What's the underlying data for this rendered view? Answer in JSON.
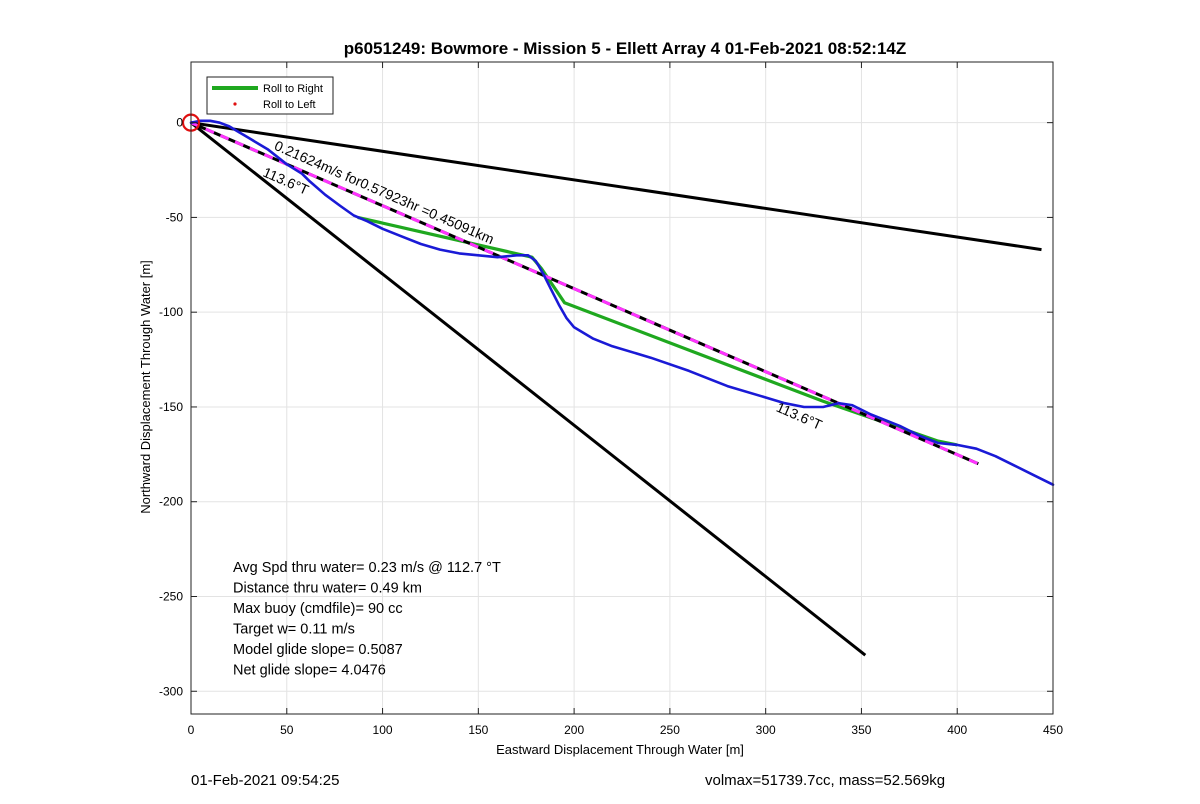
{
  "chart_data": {
    "type": "line",
    "title": "p6051249: Bowmore - Mission 5 - Ellett Array 4 01-Feb-2021 08:52:14Z",
    "xlabel": "Eastward Displacement Through Water [m]",
    "ylabel": "Northward Displacement Through Water [m]",
    "xlim": [
      0,
      450
    ],
    "ylim": [
      -312,
      32
    ],
    "xticks": [
      0,
      50,
      100,
      150,
      200,
      250,
      300,
      350,
      400,
      450
    ],
    "yticks": [
      0,
      -50,
      -100,
      -150,
      -200,
      -250,
      -300
    ],
    "grid": true,
    "legend": {
      "placement": "top-left",
      "entries": [
        "Roll to Right",
        "Roll to Left"
      ]
    },
    "colors": {
      "track": "#1a1ad6",
      "roll_right": "#1fa81f",
      "roll_left": "#e01010",
      "bounds": "#000000",
      "avg_line_dash": "#ff33ff",
      "start_marker": "#e01010"
    },
    "series": [
      {
        "name": "Roll to Right",
        "style": "solid",
        "segments": [
          [
            [
              87,
              -50
            ],
            [
              178,
              -71
            ],
            [
              183,
              -77
            ],
            [
              195,
              -95
            ],
            [
              330,
              -147
            ],
            [
              390,
              -168
            ],
            [
              400,
              -170
            ]
          ]
        ]
      },
      {
        "name": "Roll to Left",
        "style": "dots",
        "segments": []
      }
    ],
    "track": {
      "style": "solid",
      "points": [
        [
          0,
          0
        ],
        [
          5,
          1
        ],
        [
          10,
          1
        ],
        [
          15,
          0
        ],
        [
          20,
          -2
        ],
        [
          25,
          -5
        ],
        [
          30,
          -8
        ],
        [
          40,
          -14
        ],
        [
          50,
          -22
        ],
        [
          58,
          -27
        ],
        [
          62,
          -31
        ],
        [
          70,
          -38
        ],
        [
          78,
          -44
        ],
        [
          85,
          -49
        ],
        [
          92,
          -52
        ],
        [
          100,
          -56
        ],
        [
          110,
          -60
        ],
        [
          120,
          -64
        ],
        [
          130,
          -67
        ],
        [
          140,
          -69
        ],
        [
          150,
          -70
        ],
        [
          160,
          -71
        ],
        [
          170,
          -70
        ],
        [
          176,
          -70
        ],
        [
          180,
          -73
        ],
        [
          184,
          -80
        ],
        [
          188,
          -88
        ],
        [
          192,
          -96
        ],
        [
          196,
          -103
        ],
        [
          200,
          -108
        ],
        [
          210,
          -114
        ],
        [
          220,
          -118
        ],
        [
          240,
          -124
        ],
        [
          260,
          -131
        ],
        [
          280,
          -139
        ],
        [
          300,
          -145
        ],
        [
          310,
          -148
        ],
        [
          320,
          -150
        ],
        [
          330,
          -150
        ],
        [
          338,
          -148
        ],
        [
          345,
          -149
        ],
        [
          355,
          -154
        ],
        [
          370,
          -160
        ],
        [
          380,
          -165
        ],
        [
          390,
          -169
        ],
        [
          400,
          -170
        ],
        [
          410,
          -172
        ],
        [
          420,
          -176
        ],
        [
          430,
          -181
        ],
        [
          440,
          -186
        ],
        [
          450,
          -191
        ]
      ]
    },
    "bound_lines": [
      {
        "points": [
          [
            0,
            0
          ],
          [
            444,
            -67
          ]
        ]
      },
      {
        "points": [
          [
            0,
            0
          ],
          [
            352,
            -281
          ]
        ]
      }
    ],
    "average_line": {
      "style": "black/magenta dashed",
      "points": [
        [
          0,
          0
        ],
        [
          411,
          -180
        ]
      ]
    },
    "start_marker": {
      "x": 0,
      "y": 0,
      "shape": "circle"
    },
    "annotations": [
      {
        "text": "0.21624m/s for0.57923hr =0.45091km",
        "x": 43,
        "y": -14,
        "rotation_deg": 23.6
      },
      {
        "text": "113.6°T",
        "x": 37,
        "y": -28,
        "rotation_deg": 23.6
      },
      {
        "text": "113.6°T",
        "x": 305,
        "y": -152,
        "rotation_deg": 23.6
      }
    ],
    "stats": [
      "Avg Spd thru water=  0.23 m/s @ 112.7 °T",
      "Distance thru water=  0.49 km",
      "Max buoy (cmdfile)= 90 cc",
      "Target w= 0.11 m/s",
      "Model glide slope= 0.5087",
      "Net glide slope= 4.0476"
    ]
  },
  "footer": {
    "left": "01-Feb-2021 09:54:25",
    "right": "volmax=51739.7cc, mass=52.569kg"
  }
}
